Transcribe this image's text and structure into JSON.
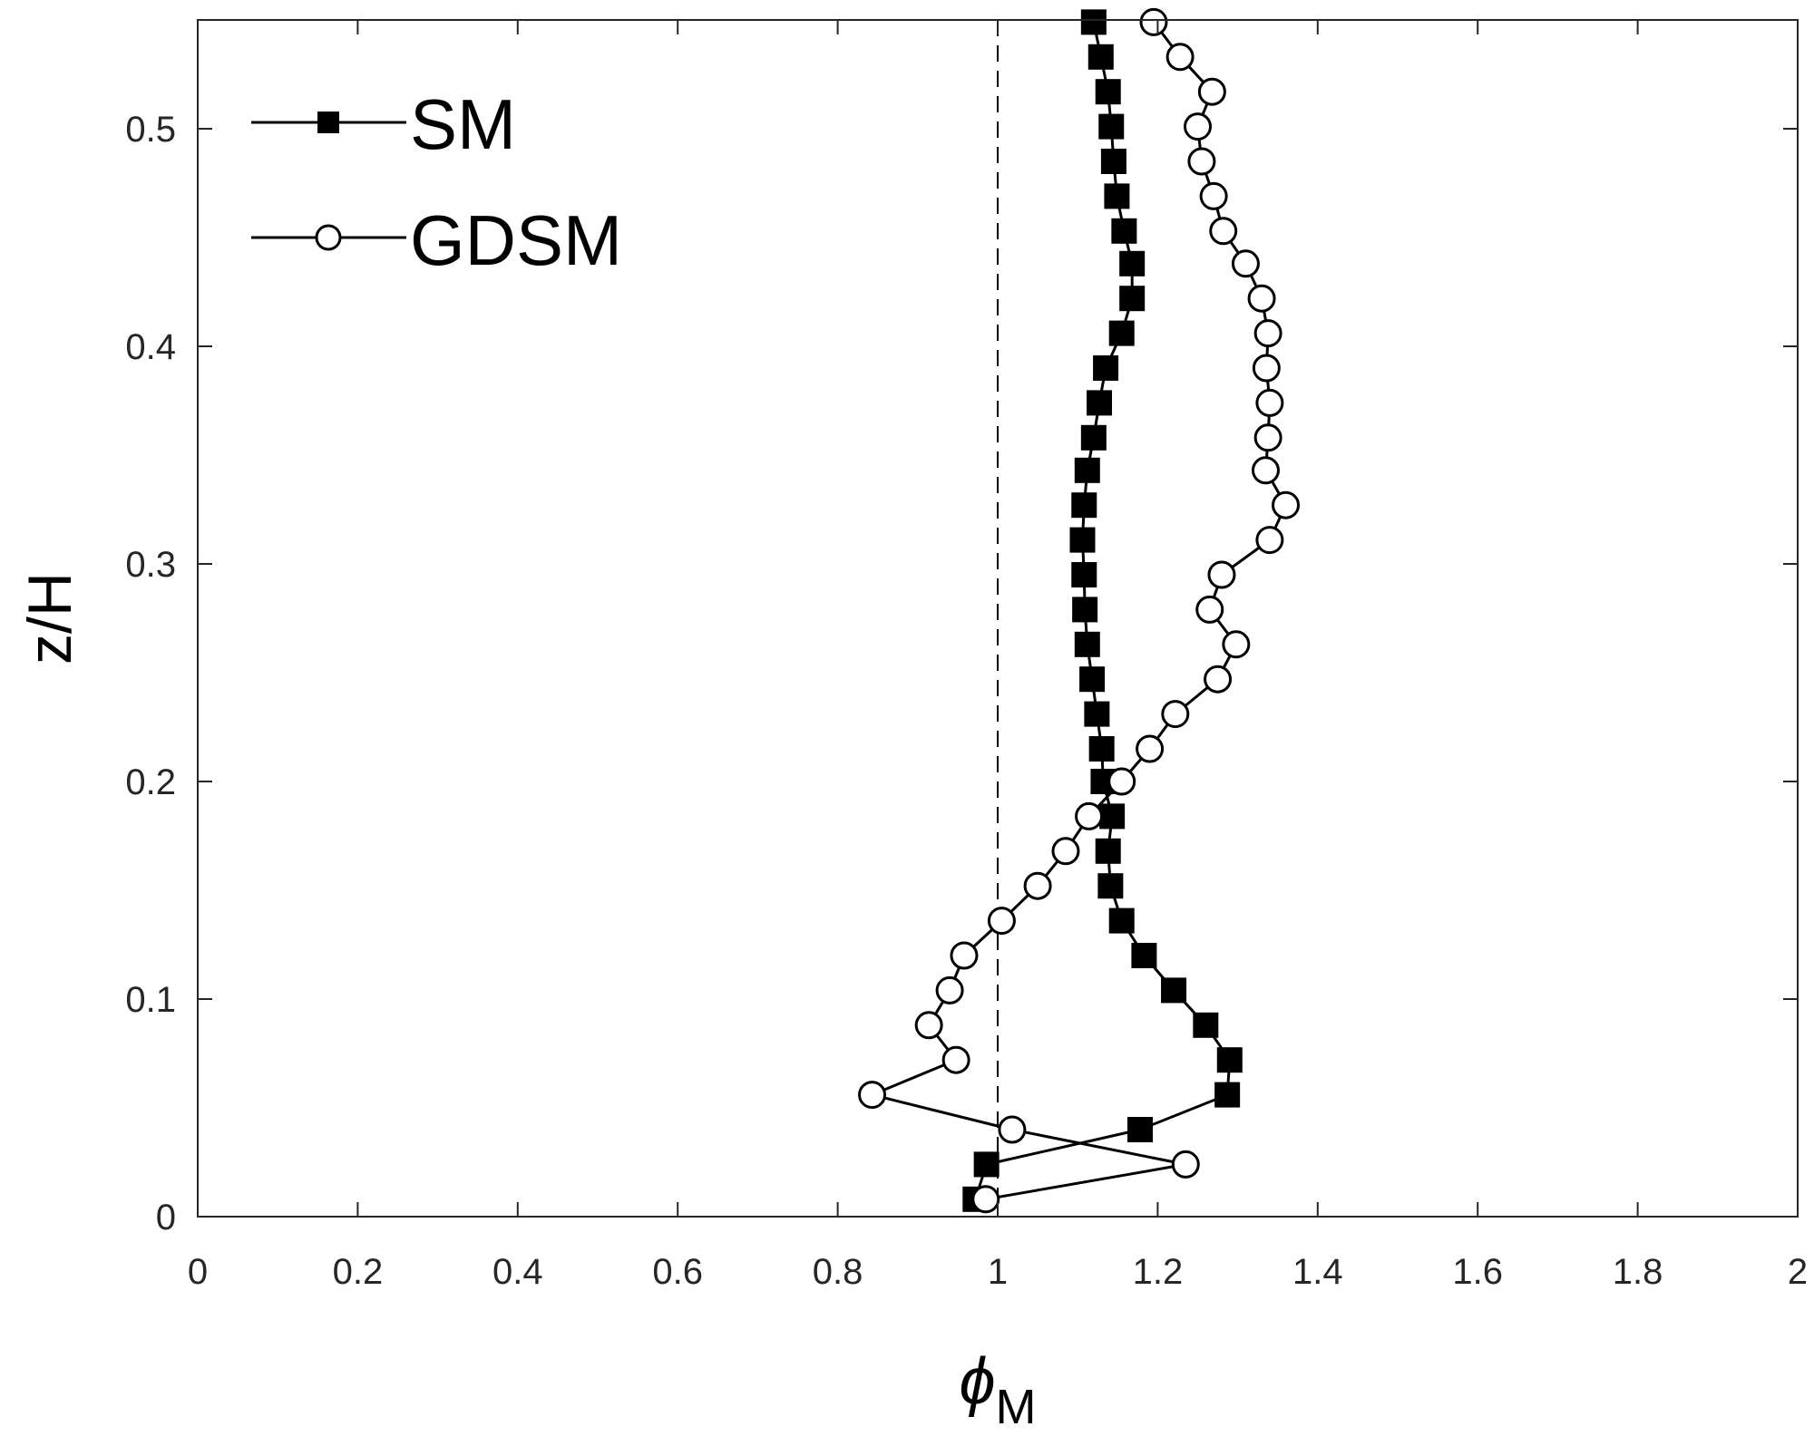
{
  "chart_data": {
    "type": "line",
    "xlabel_symbol": "ϕ",
    "xlabel_subscript": "M",
    "ylabel": "z/H",
    "xlim": [
      0,
      2
    ],
    "ylim": [
      0,
      0.55
    ],
    "xticks": [
      0,
      0.2,
      0.4,
      0.6,
      0.8,
      1,
      1.2,
      1.4,
      1.6,
      1.8,
      2
    ],
    "xtick_labels": [
      "0",
      "0.2",
      "0.4",
      "0.6",
      "0.8",
      "1",
      "1.2",
      "1.4",
      "1.6",
      "1.8",
      "2"
    ],
    "yticks": [
      0,
      0.1,
      0.2,
      0.3,
      0.4,
      0.5
    ],
    "ytick_labels": [
      "0",
      "0.1",
      "0.2",
      "0.3",
      "0.4",
      "0.5"
    ],
    "reference_line_x": 1,
    "grid": false,
    "legend_position": "top-left",
    "series": [
      {
        "name": "SM",
        "marker": "filled-square",
        "color": "#000000",
        "points": [
          [
            0.972,
            0.008
          ],
          [
            0.986,
            0.024
          ],
          [
            1.178,
            0.04
          ],
          [
            1.287,
            0.056
          ],
          [
            1.29,
            0.072
          ],
          [
            1.26,
            0.088
          ],
          [
            1.22,
            0.104
          ],
          [
            1.183,
            0.12
          ],
          [
            1.155,
            0.136
          ],
          [
            1.141,
            0.152
          ],
          [
            1.138,
            0.168
          ],
          [
            1.143,
            0.184
          ],
          [
            1.132,
            0.2
          ],
          [
            1.13,
            0.215
          ],
          [
            1.124,
            0.231
          ],
          [
            1.118,
            0.247
          ],
          [
            1.112,
            0.263
          ],
          [
            1.109,
            0.279
          ],
          [
            1.108,
            0.295
          ],
          [
            1.106,
            0.311
          ],
          [
            1.108,
            0.327
          ],
          [
            1.112,
            0.343
          ],
          [
            1.12,
            0.358
          ],
          [
            1.127,
            0.374
          ],
          [
            1.135,
            0.39
          ],
          [
            1.155,
            0.406
          ],
          [
            1.168,
            0.422
          ],
          [
            1.168,
            0.438
          ],
          [
            1.158,
            0.453
          ],
          [
            1.149,
            0.469
          ],
          [
            1.145,
            0.485
          ],
          [
            1.142,
            0.501
          ],
          [
            1.138,
            0.517
          ],
          [
            1.129,
            0.533
          ],
          [
            1.12,
            0.549
          ]
        ]
      },
      {
        "name": "GDSM",
        "marker": "open-circle",
        "color": "#000000",
        "points": [
          [
            0.985,
            0.008
          ],
          [
            1.235,
            0.024
          ],
          [
            1.018,
            0.04
          ],
          [
            0.843,
            0.056
          ],
          [
            0.948,
            0.072
          ],
          [
            0.914,
            0.088
          ],
          [
            0.94,
            0.104
          ],
          [
            0.958,
            0.12
          ],
          [
            1.005,
            0.136
          ],
          [
            1.05,
            0.152
          ],
          [
            1.085,
            0.168
          ],
          [
            1.114,
            0.184
          ],
          [
            1.155,
            0.2
          ],
          [
            1.19,
            0.215
          ],
          [
            1.222,
            0.231
          ],
          [
            1.275,
            0.247
          ],
          [
            1.298,
            0.263
          ],
          [
            1.265,
            0.279
          ],
          [
            1.28,
            0.295
          ],
          [
            1.34,
            0.311
          ],
          [
            1.36,
            0.327
          ],
          [
            1.335,
            0.343
          ],
          [
            1.338,
            0.358
          ],
          [
            1.34,
            0.374
          ],
          [
            1.336,
            0.39
          ],
          [
            1.338,
            0.406
          ],
          [
            1.33,
            0.422
          ],
          [
            1.31,
            0.438
          ],
          [
            1.282,
            0.453
          ],
          [
            1.27,
            0.469
          ],
          [
            1.255,
            0.485
          ],
          [
            1.25,
            0.501
          ],
          [
            1.268,
            0.517
          ],
          [
            1.228,
            0.533
          ],
          [
            1.195,
            0.549
          ]
        ]
      }
    ]
  }
}
